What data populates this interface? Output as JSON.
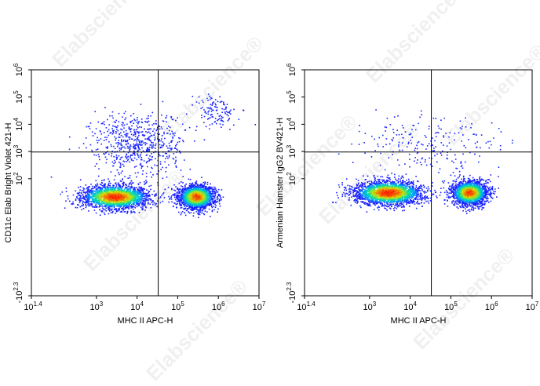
{
  "watermark": {
    "text": "Elabscience",
    "mark": "®"
  },
  "chart_data": [
    {
      "type": "scatter",
      "plot": "density-dot",
      "xlabel": "MHC II APC-H",
      "ylabel": "CD11c Elab Bright Violet 421-H",
      "xscale": "log",
      "yscale": "log",
      "xlim": [
        1.4,
        7
      ],
      "ylim": [
        -2.3,
        6
      ],
      "x_ticks": [
        {
          "base": "10",
          "exp": "1.4"
        },
        {
          "base": "10",
          "exp": "3"
        },
        {
          "base": "10",
          "exp": "4"
        },
        {
          "base": "10",
          "exp": "5"
        },
        {
          "base": "10",
          "exp": "6"
        },
        {
          "base": "10",
          "exp": "7"
        }
      ],
      "y_ticks": [
        {
          "base": "-10",
          "exp": "2.3"
        },
        {
          "base": "10",
          "exp": "2"
        },
        {
          "base": "10",
          "exp": "3"
        },
        {
          "base": "10",
          "exp": "4"
        },
        {
          "base": "10",
          "exp": "5"
        },
        {
          "base": "10",
          "exp": "6"
        }
      ],
      "quadrant_gate": {
        "x": 4.52,
        "y": 2.98
      },
      "populations": [
        {
          "x_center": 3.45,
          "y_center": 1.35,
          "relative_size": 1.0
        },
        {
          "x_center": 5.45,
          "y_center": 1.35,
          "relative_size": 0.85
        },
        {
          "x_center": 4.0,
          "y_center": 3.3,
          "relative_size": 0.35
        },
        {
          "x_center": 5.95,
          "y_center": 4.5,
          "relative_size": 0.1
        }
      ],
      "color_scale": [
        "#1a1aff",
        "#00a0ff",
        "#00e0a0",
        "#d8e000",
        "#ff2000"
      ]
    },
    {
      "type": "scatter",
      "plot": "density-dot",
      "xlabel": "MHC II APC-H",
      "ylabel": "Armenian Hamster IgG2 BV421-H",
      "xscale": "log",
      "yscale": "log",
      "xlim": [
        1.4,
        7
      ],
      "ylim": [
        -2.3,
        6
      ],
      "x_ticks": [
        {
          "base": "10",
          "exp": "1.4"
        },
        {
          "base": "10",
          "exp": "3"
        },
        {
          "base": "10",
          "exp": "4"
        },
        {
          "base": "10",
          "exp": "5"
        },
        {
          "base": "10",
          "exp": "6"
        },
        {
          "base": "10",
          "exp": "7"
        }
      ],
      "y_ticks": [
        {
          "base": "-10",
          "exp": "2.3"
        },
        {
          "base": "10",
          "exp": "2"
        },
        {
          "base": "10",
          "exp": "3"
        },
        {
          "base": "10",
          "exp": "4"
        },
        {
          "base": "10",
          "exp": "5"
        },
        {
          "base": "10",
          "exp": "6"
        }
      ],
      "quadrant_gate": {
        "x": 4.52,
        "y": 2.98
      },
      "populations": [
        {
          "x_center": 3.45,
          "y_center": 1.5,
          "relative_size": 1.0
        },
        {
          "x_center": 5.45,
          "y_center": 1.5,
          "relative_size": 0.85
        },
        {
          "x_center": 4.6,
          "y_center": 3.3,
          "relative_size": 0.12
        }
      ],
      "color_scale": [
        "#1a1aff",
        "#00a0ff",
        "#00e0a0",
        "#d8e000",
        "#ff2000"
      ]
    }
  ]
}
